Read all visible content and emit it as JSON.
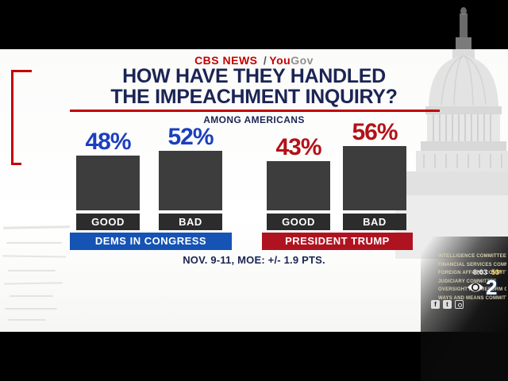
{
  "brand": {
    "cbs": "CBS NEWS",
    "sep": "/",
    "you": "You",
    "gov": "Gov"
  },
  "title": {
    "line1": "HOW HAVE THEY HANDLED",
    "line2": "THE IMPEACHMENT INQUIRY?"
  },
  "chart_data": {
    "type": "bar",
    "title": "HOW HAVE THEY HANDLED THE IMPEACHMENT INQUIRY?",
    "subtitle": "AMONG AMERICANS",
    "ylim": [
      0,
      100
    ],
    "bar_color": "#3d3d3d",
    "groups": [
      {
        "name": "DEMS IN CONGRESS",
        "accent_color": "#1553b5",
        "value_color": "#1c3fbe",
        "bars": [
          {
            "label": "GOOD",
            "value": 48,
            "display": "48%"
          },
          {
            "label": "BAD",
            "value": 52,
            "display": "52%"
          }
        ]
      },
      {
        "name": "PRESIDENT TRUMP",
        "accent_color": "#b01320",
        "value_color": "#b31217",
        "bars": [
          {
            "label": "GOOD",
            "value": 43,
            "display": "43%"
          },
          {
            "label": "BAD",
            "value": 56,
            "display": "56%"
          }
        ]
      }
    ],
    "footnote": "NOV. 9-11, MOE: +/- 1.9 PTS."
  },
  "station": {
    "time": "8:03",
    "temp": "53°",
    "channel": "2",
    "committees": [
      "INTELLIGENCE COMMITTEE",
      "FINANCIAL SERVICES COMMITTEE",
      "FOREIGN AFFAIRS COMMITTEE",
      "JUDICIARY COMMITTEE",
      "OVERSIGHT AND REFORM COMMITTEE",
      "WAYS AND MEANS COMMITTEE"
    ]
  }
}
